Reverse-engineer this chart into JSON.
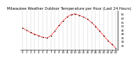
{
  "title": "Milwaukee Weather Outdoor Temperature per Hour (Last 24 Hours)",
  "hours": [
    0,
    1,
    2,
    3,
    4,
    5,
    6,
    7,
    8,
    9,
    10,
    11,
    12,
    13,
    14,
    15,
    16,
    17,
    18,
    19,
    20,
    21,
    22,
    23
  ],
  "temps": [
    48,
    45,
    42,
    40,
    38,
    36,
    35,
    38,
    44,
    51,
    57,
    62,
    65,
    66,
    64,
    62,
    59,
    55,
    50,
    44,
    38,
    32,
    27,
    22
  ],
  "line_color": "#ff0000",
  "dot_color": "#000000",
  "bg_color": "#ffffff",
  "grid_color": "#aaaaaa",
  "ylim_min": 20,
  "ylim_max": 70,
  "yticks": [
    25,
    30,
    35,
    40,
    45,
    50,
    55,
    60,
    65
  ],
  "xticks": [
    0,
    1,
    2,
    3,
    4,
    5,
    6,
    7,
    8,
    9,
    10,
    11,
    12,
    13,
    14,
    15,
    16,
    17,
    18,
    19,
    20,
    21,
    22,
    23
  ],
  "title_fontsize": 3.8,
  "tick_fontsize": 2.8,
  "line_width": 0.7,
  "dot_size": 1.2
}
